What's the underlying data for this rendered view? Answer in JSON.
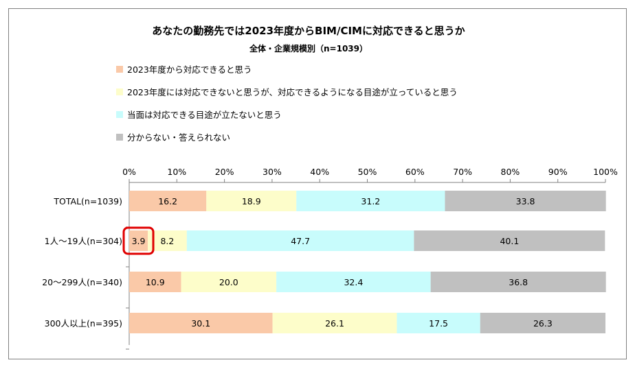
{
  "chart_data": {
    "type": "bar",
    "orientation": "horizontal",
    "stacked": true,
    "title": "あなたの勤務先では2023年度からBIM/CIMに対応できると思うか",
    "subtitle": "全体・企業規模別（n=1039）",
    "categories": [
      "TOTAL(n=1039)",
      "1人～19人(n=304)",
      "20～299人(n=340)",
      "300人以上(n=395)"
    ],
    "series": [
      {
        "name": "2023年度から対応できると思う",
        "color": "#fac9a8",
        "values": [
          16.2,
          3.9,
          10.9,
          30.1
        ]
      },
      {
        "name": "2023年度には対応できないと思うが、対応できるようになる目途が立っていると思う",
        "color": "#fdfdca",
        "values": [
          18.9,
          8.2,
          20.0,
          26.1
        ]
      },
      {
        "name": "当面は対応できる目途が立たないと思う",
        "color": "#c8fcfc",
        "values": [
          31.2,
          47.7,
          32.4,
          17.5
        ]
      },
      {
        "name": "分からない・答えられない",
        "color": "#c0c0c0",
        "values": [
          33.8,
          40.1,
          36.8,
          26.3
        ]
      }
    ],
    "value_labels": [
      [
        "16.2",
        "18.9",
        "31.2",
        "33.8"
      ],
      [
        "3.9",
        "8.2",
        "47.7",
        "40.1"
      ],
      [
        "10.9",
        "20.0",
        "32.4",
        "36.8"
      ],
      [
        "30.1",
        "26.1",
        "17.5",
        "26.3"
      ]
    ],
    "xlim": [
      0,
      100
    ],
    "x_ticks": [
      "0%",
      "10%",
      "20%",
      "30%",
      "40%",
      "50%",
      "60%",
      "70%",
      "80%",
      "90%",
      "100%"
    ],
    "x_tick_values": [
      0,
      10,
      20,
      30,
      40,
      50,
      60,
      70,
      80,
      90,
      100
    ],
    "legend_position": "top-left",
    "highlight": {
      "category_index": 1,
      "series_index": 0,
      "color": "#e00000"
    }
  }
}
